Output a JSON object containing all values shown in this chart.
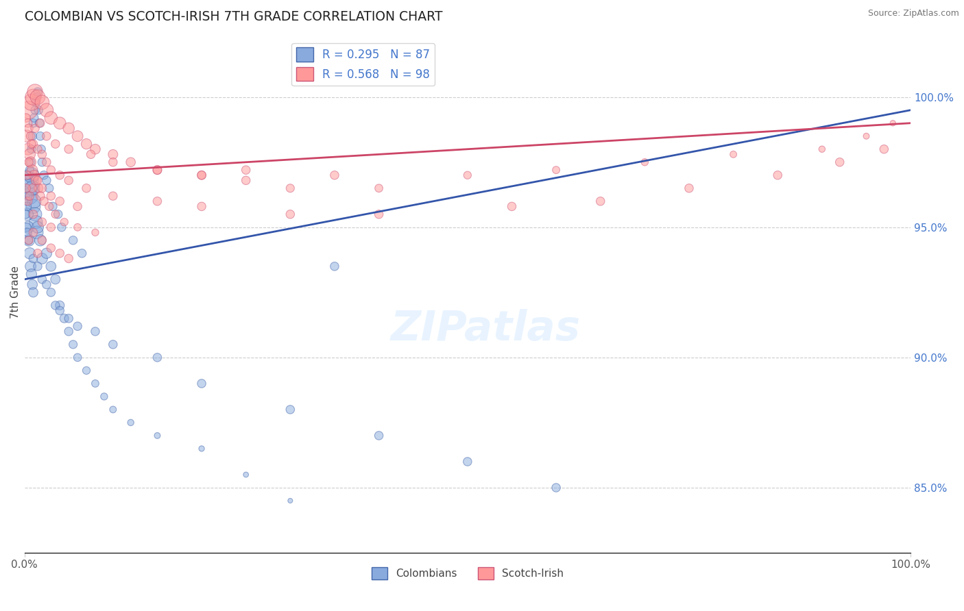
{
  "title": "COLOMBIAN VS SCOTCH-IRISH 7TH GRADE CORRELATION CHART",
  "source": "Source: ZipAtlas.com",
  "ylabel": "7th Grade",
  "right_yticks": [
    100.0,
    95.0,
    90.0,
    85.0
  ],
  "blue_label": "Colombians",
  "pink_label": "Scotch-Irish",
  "blue_R": 0.295,
  "blue_N": 87,
  "pink_R": 0.568,
  "pink_N": 98,
  "blue_color": "#88AADD",
  "pink_color": "#FF9999",
  "blue_edge": "#4466AA",
  "pink_edge": "#CC5577",
  "blue_line": "#3355AA",
  "pink_line": "#CC4466",
  "xlim": [
    0.0,
    100.0
  ],
  "ylim": [
    82.5,
    102.5
  ],
  "blue_trend": [
    93.0,
    99.5
  ],
  "pink_trend": [
    97.0,
    99.0
  ],
  "blue_points_x": [
    0.5,
    0.6,
    0.7,
    0.8,
    0.9,
    1.0,
    1.1,
    1.2,
    1.3,
    1.4,
    0.3,
    0.4,
    0.5,
    0.6,
    0.7,
    0.8,
    0.9,
    1.0,
    1.5,
    1.8,
    2.0,
    2.5,
    3.0,
    3.5,
    4.0,
    4.5,
    5.0,
    5.5,
    6.0,
    7.0,
    8.0,
    9.0,
    10.0,
    12.0,
    15.0,
    20.0,
    25.0,
    30.0,
    0.2,
    0.3,
    0.4,
    0.5,
    0.6,
    0.7,
    0.8,
    0.9,
    1.0,
    1.1,
    1.2,
    1.3,
    1.4,
    1.5,
    1.6,
    1.7,
    1.8,
    1.9,
    2.0,
    2.2,
    2.5,
    2.8,
    3.2,
    3.8,
    4.2,
    5.5,
    6.5,
    35.0,
    0.15,
    0.25,
    0.35,
    0.45,
    1.0,
    1.5,
    2.0,
    2.5,
    3.0,
    3.5,
    4.0,
    5.0,
    6.0,
    8.0,
    10.0,
    15.0,
    20.0,
    30.0,
    40.0,
    50.0,
    60.0
  ],
  "blue_points_y": [
    96.5,
    96.2,
    96.8,
    97.0,
    96.5,
    95.8,
    96.0,
    95.5,
    95.2,
    94.8,
    95.5,
    95.0,
    94.5,
    94.0,
    93.5,
    93.2,
    92.8,
    92.5,
    95.0,
    94.5,
    93.8,
    94.0,
    93.5,
    93.0,
    92.0,
    91.5,
    91.0,
    90.5,
    90.0,
    89.5,
    89.0,
    88.5,
    88.0,
    87.5,
    87.0,
    86.5,
    85.5,
    84.5,
    96.0,
    95.8,
    96.2,
    97.0,
    97.2,
    97.5,
    98.0,
    98.5,
    99.0,
    99.2,
    99.5,
    99.8,
    100.0,
    100.2,
    99.5,
    99.0,
    98.5,
    98.0,
    97.5,
    97.0,
    96.8,
    96.5,
    95.8,
    95.5,
    95.0,
    94.5,
    94.0,
    93.5,
    95.5,
    95.0,
    94.8,
    94.5,
    93.8,
    93.5,
    93.0,
    92.8,
    92.5,
    92.0,
    91.8,
    91.5,
    91.2,
    91.0,
    90.5,
    90.0,
    89.0,
    88.0,
    87.0,
    86.0,
    85.0
  ],
  "blue_sizes": [
    350,
    300,
    280,
    260,
    240,
    220,
    210,
    200,
    190,
    180,
    170,
    160,
    150,
    140,
    130,
    120,
    110,
    100,
    150,
    140,
    130,
    120,
    110,
    100,
    90,
    85,
    80,
    75,
    70,
    65,
    60,
    55,
    50,
    45,
    40,
    35,
    30,
    25,
    80,
    80,
    80,
    80,
    80,
    80,
    80,
    80,
    80,
    80,
    80,
    80,
    80,
    80,
    80,
    80,
    80,
    80,
    80,
    80,
    80,
    80,
    80,
    80,
    80,
    80,
    80,
    80,
    80,
    80,
    80,
    80,
    80,
    80,
    80,
    80,
    80,
    80,
    80,
    80,
    80,
    80,
    80,
    80,
    80,
    80,
    80,
    80,
    80
  ],
  "pink_points_x": [
    0.5,
    0.8,
    1.0,
    1.2,
    1.5,
    2.0,
    2.5,
    3.0,
    4.0,
    5.0,
    6.0,
    7.0,
    8.0,
    10.0,
    12.0,
    15.0,
    20.0,
    25.0,
    30.0,
    40.0,
    50.0,
    60.0,
    70.0,
    80.0,
    90.0,
    95.0,
    98.0,
    0.3,
    0.4,
    0.6,
    0.7,
    0.9,
    1.1,
    1.3,
    1.6,
    1.8,
    2.2,
    2.8,
    3.5,
    4.5,
    6.0,
    8.0,
    0.2,
    0.4,
    0.5,
    0.7,
    1.0,
    1.5,
    2.0,
    2.5,
    3.0,
    4.0,
    5.0,
    7.0,
    10.0,
    15.0,
    20.0,
    30.0,
    0.3,
    0.5,
    0.8,
    1.2,
    1.8,
    2.5,
    3.5,
    5.0,
    7.5,
    10.0,
    15.0,
    20.0,
    25.0,
    35.0,
    0.4,
    0.6,
    0.9,
    1.5,
    2.0,
    3.0,
    4.0,
    6.0,
    0.2,
    1.0,
    2.0,
    3.0,
    40.0,
    55.0,
    65.0,
    75.0,
    85.0,
    92.0,
    97.0,
    1.0,
    2.0,
    3.0,
    4.0,
    5.0,
    0.5,
    1.5
  ],
  "pink_points_y": [
    99.5,
    99.8,
    100.0,
    100.2,
    100.0,
    99.8,
    99.5,
    99.2,
    99.0,
    98.8,
    98.5,
    98.2,
    98.0,
    97.8,
    97.5,
    97.2,
    97.0,
    96.8,
    96.5,
    96.5,
    97.0,
    97.2,
    97.5,
    97.8,
    98.0,
    98.5,
    99.0,
    98.5,
    98.0,
    97.8,
    97.5,
    97.2,
    97.0,
    96.8,
    96.5,
    96.2,
    96.0,
    95.8,
    95.5,
    95.2,
    95.0,
    94.8,
    99.2,
    99.0,
    98.8,
    98.5,
    98.2,
    98.0,
    97.8,
    97.5,
    97.2,
    97.0,
    96.8,
    96.5,
    96.2,
    96.0,
    95.8,
    95.5,
    97.0,
    97.5,
    98.2,
    98.8,
    99.0,
    98.5,
    98.2,
    98.0,
    97.8,
    97.5,
    97.2,
    97.0,
    97.2,
    97.0,
    96.0,
    96.2,
    96.5,
    96.8,
    96.5,
    96.2,
    96.0,
    95.8,
    96.5,
    95.5,
    95.2,
    95.0,
    95.5,
    95.8,
    96.0,
    96.5,
    97.0,
    97.5,
    98.0,
    94.8,
    94.5,
    94.2,
    94.0,
    93.8,
    94.5,
    94.0
  ],
  "pink_sizes": [
    350,
    300,
    280,
    260,
    240,
    220,
    200,
    180,
    160,
    140,
    130,
    120,
    110,
    100,
    95,
    90,
    85,
    80,
    75,
    70,
    65,
    60,
    55,
    50,
    45,
    40,
    35,
    160,
    150,
    140,
    130,
    120,
    110,
    100,
    90,
    85,
    80,
    75,
    70,
    65,
    60,
    55,
    80,
    80,
    80,
    80,
    80,
    80,
    80,
    80,
    80,
    80,
    80,
    80,
    80,
    80,
    80,
    80,
    80,
    80,
    80,
    80,
    80,
    80,
    80,
    80,
    80,
    80,
    80,
    80,
    80,
    80,
    80,
    80,
    80,
    80,
    80,
    80,
    80,
    80,
    80,
    80,
    80,
    80,
    80,
    80,
    80,
    80,
    80,
    80,
    80,
    80,
    80,
    80,
    80,
    80,
    80,
    80
  ]
}
